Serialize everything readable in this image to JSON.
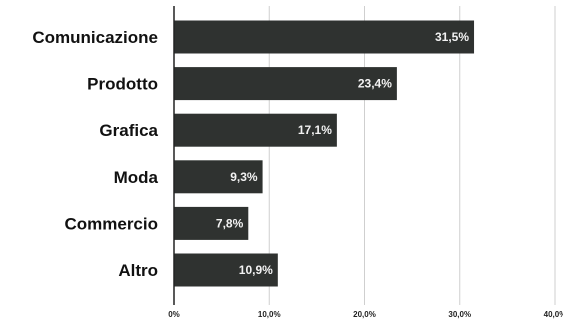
{
  "chart_data": {
    "type": "bar",
    "orientation": "horizontal",
    "categories": [
      "Comunicazione",
      "Prodotto",
      "Grafica",
      "Moda",
      "Commercio",
      "Altro"
    ],
    "values": [
      31.5,
      23.4,
      17.1,
      9.3,
      7.8,
      10.9
    ],
    "data_labels": [
      "31,5%",
      "23,4%",
      "17,1%",
      "9,3%",
      "7,8%",
      "10,9%"
    ],
    "xlim": [
      0,
      40
    ],
    "x_ticks": [
      0,
      10,
      20,
      30,
      40
    ],
    "x_tick_labels": [
      "0%",
      "10,0%",
      "20,0%",
      "30,0%",
      "40,0%"
    ],
    "grid": true,
    "colors": {
      "bar": "#2f3230",
      "grid": "#cfcfcf",
      "label_on_bar": "#f2f2f2",
      "text": "#111111"
    }
  }
}
